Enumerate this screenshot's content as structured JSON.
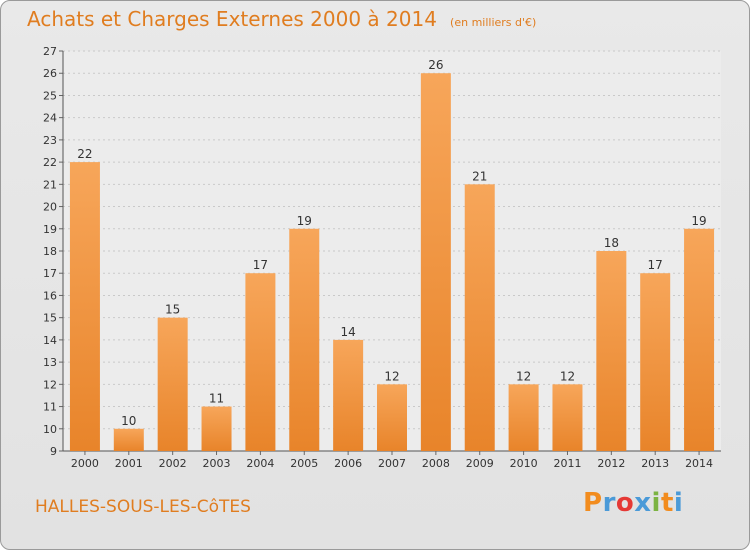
{
  "header": {
    "title": "Achats et Charges Externes 2000 à 2014",
    "unit_note": "(en milliers d'€)"
  },
  "footer": {
    "commune": "HALLES-SOUS-LES-CôTES",
    "logo": "Proxiti"
  },
  "colors": {
    "accent": "#e07d20",
    "bar_top": "#f7a65a",
    "bar_bottom": "#e8842a",
    "logo_letters": [
      "#f28c1e",
      "#4a9ad8",
      "#e53935",
      "#4a9ad8",
      "#7cb342",
      "#f28c1e",
      "#4a9ad8"
    ]
  },
  "chart_data": {
    "type": "bar",
    "categories": [
      "2000",
      "2001",
      "2002",
      "2003",
      "2004",
      "2005",
      "2006",
      "2007",
      "2008",
      "2009",
      "2010",
      "2011",
      "2012",
      "2013",
      "2014"
    ],
    "values": [
      22,
      10,
      15,
      11,
      17,
      19,
      14,
      12,
      26,
      21,
      12,
      12,
      18,
      17,
      19
    ],
    "title": "Achats et Charges Externes 2000 à 2014",
    "xlabel": "",
    "ylabel": "",
    "ylim": [
      9,
      27
    ],
    "yticks": [
      9,
      10,
      11,
      12,
      13,
      14,
      15,
      16,
      17,
      18,
      19,
      20,
      21,
      22,
      23,
      24,
      25,
      26,
      27
    ],
    "grid": true,
    "legend": "none"
  }
}
